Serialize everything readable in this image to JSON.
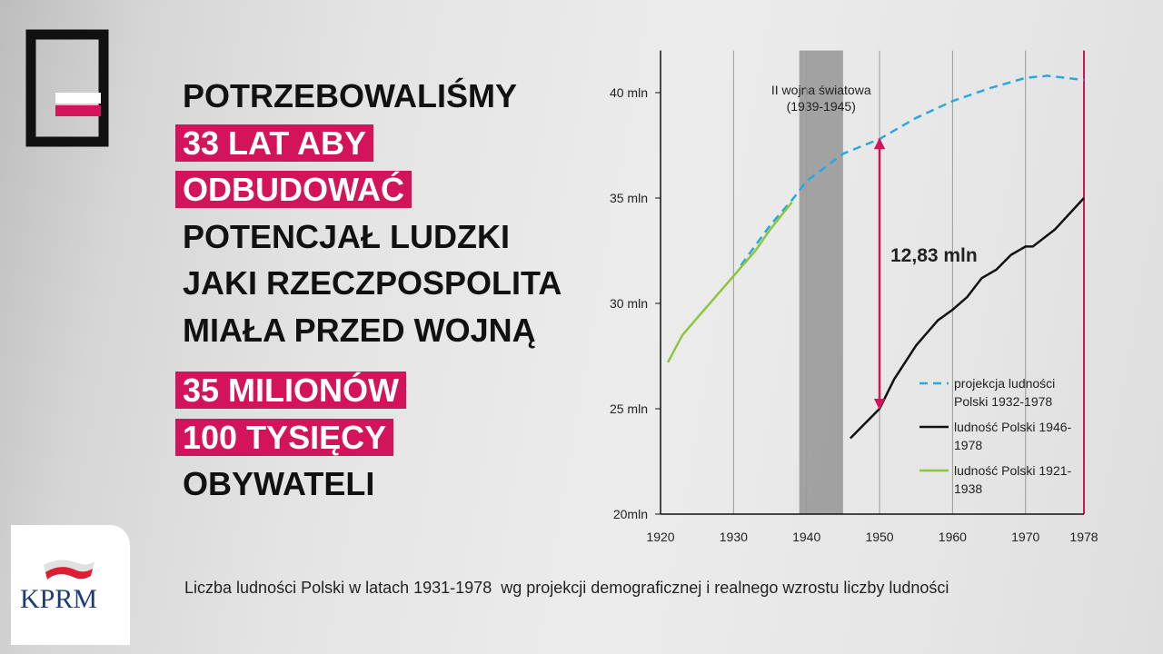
{
  "headline": {
    "lines": [
      {
        "text": "POTRZEBOWALIŚMY",
        "highlight": false
      },
      {
        "text": "33 LAT ABY",
        "highlight": true
      },
      {
        "text": "ODBUDOWAĆ",
        "highlight": true
      },
      {
        "text": "POTENCJAŁ LUDZKI",
        "highlight": false
      },
      {
        "text": "JAKI RZECZPOSPOLITA",
        "highlight": false
      },
      {
        "text": "MIAŁA PRZED WOJNĄ",
        "highlight": false
      },
      {
        "text": "35 MILIONÓW",
        "highlight": true
      },
      {
        "text": "100 TYSIĘCY",
        "highlight": true
      },
      {
        "text": "OBYWATELI",
        "highlight": false
      }
    ],
    "highlight_color": "#d4145a"
  },
  "logo": "KPRM",
  "chart_data": {
    "type": "line",
    "caption": "Liczba ludności Polski w latach 1931-1978  wg projekcji demograficznej i realnego wzrostu liczby ludności",
    "xlim": [
      1920,
      1978
    ],
    "xticks": [
      1920,
      1930,
      1940,
      1950,
      1960,
      1970,
      1978
    ],
    "xmarker": 1978,
    "xmarker_color": "#d4145a",
    "ylim": [
      20,
      42
    ],
    "yticks": [
      {
        "value": 20,
        "label": "20mln"
      },
      {
        "value": 25,
        "label": "25 mln"
      },
      {
        "value": 30,
        "label": "30 mln"
      },
      {
        "value": 35,
        "label": "35 mln"
      },
      {
        "value": 40,
        "label": "40 mln"
      }
    ],
    "grid": true,
    "shaded_span": [
      1939,
      1945
    ],
    "shaded_label": [
      "II wojna światowa",
      "(1939-1945)"
    ],
    "difference_label": "12,83 mln",
    "difference_year": 1950,
    "series": [
      {
        "name": "projekcja ludności Polski 1932-1978",
        "color": "#29a8e0",
        "dashed": true,
        "x": [
          1931,
          1935,
          1938,
          1940,
          1945,
          1950,
          1955,
          1960,
          1965,
          1970,
          1973,
          1978
        ],
        "values": [
          31.8,
          33.7,
          34.9,
          35.8,
          37.1,
          37.8,
          38.8,
          39.6,
          40.2,
          40.7,
          40.8,
          40.6
        ]
      },
      {
        "name": "ludność Polski 1946-1978",
        "color": "#111111",
        "dashed": false,
        "x": [
          1946,
          1950,
          1952,
          1955,
          1958,
          1960,
          1962,
          1964,
          1966,
          1968,
          1970,
          1971,
          1974,
          1978
        ],
        "values": [
          23.6,
          25.0,
          26.4,
          28.0,
          29.2,
          29.7,
          30.3,
          31.2,
          31.6,
          32.3,
          32.7,
          32.7,
          33.5,
          35.0
        ]
      },
      {
        "name": "ludność Polski 1921-1938",
        "color": "#8cc63f",
        "dashed": false,
        "x": [
          1921,
          1923,
          1925,
          1928,
          1931,
          1933,
          1935,
          1938
        ],
        "values": [
          27.2,
          28.5,
          29.3,
          30.5,
          31.7,
          32.5,
          33.5,
          34.8
        ]
      }
    ]
  }
}
